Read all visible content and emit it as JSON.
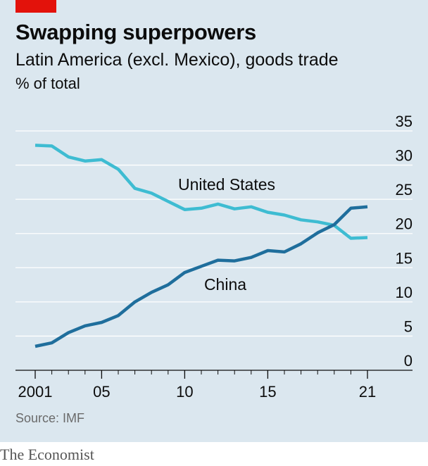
{
  "header": {
    "title": "Swapping superpowers",
    "subtitle": "Latin America (excl. Mexico), goods trade",
    "unit": "% of total"
  },
  "footer": {
    "source": "Source: IMF",
    "brand": "The Economist"
  },
  "colors": {
    "accent": "#e3120b",
    "background": "#dbe7ef",
    "united_states": "#3ebcd2",
    "china": "#1f6e9c",
    "grid": "#ffffff",
    "axis": "#0c0c0c"
  },
  "chart_data": {
    "type": "line",
    "x": [
      2001,
      2002,
      2003,
      2004,
      2005,
      2006,
      2007,
      2008,
      2009,
      2010,
      2011,
      2012,
      2013,
      2014,
      2015,
      2016,
      2017,
      2018,
      2019,
      2020,
      2021
    ],
    "x_tick_values": [
      2001,
      2005,
      2010,
      2015,
      2021
    ],
    "x_tick_labels": [
      "2001",
      "05",
      "10",
      "15",
      "21"
    ],
    "y_ticks": [
      0,
      5,
      10,
      15,
      20,
      25,
      30,
      35
    ],
    "xlim": [
      2000,
      2022.5
    ],
    "ylim": [
      0,
      35
    ],
    "grid": true,
    "y_axis_side": "right",
    "series": [
      {
        "name": "United States",
        "color_key": "united_states",
        "values": [
          32.9,
          32.8,
          31.2,
          30.6,
          30.8,
          29.4,
          26.6,
          25.9,
          24.7,
          23.5,
          23.7,
          24.3,
          23.6,
          23.9,
          23.1,
          22.7,
          22.0,
          21.7,
          21.2,
          19.3,
          19.4
        ]
      },
      {
        "name": "China",
        "color_key": "china",
        "values": [
          3.5,
          4.0,
          5.5,
          6.5,
          7.0,
          8.0,
          10.0,
          11.4,
          12.5,
          14.3,
          15.2,
          16.1,
          16.0,
          16.5,
          17.5,
          17.3,
          18.5,
          20.1,
          21.3,
          23.7,
          23.9
        ]
      }
    ]
  }
}
